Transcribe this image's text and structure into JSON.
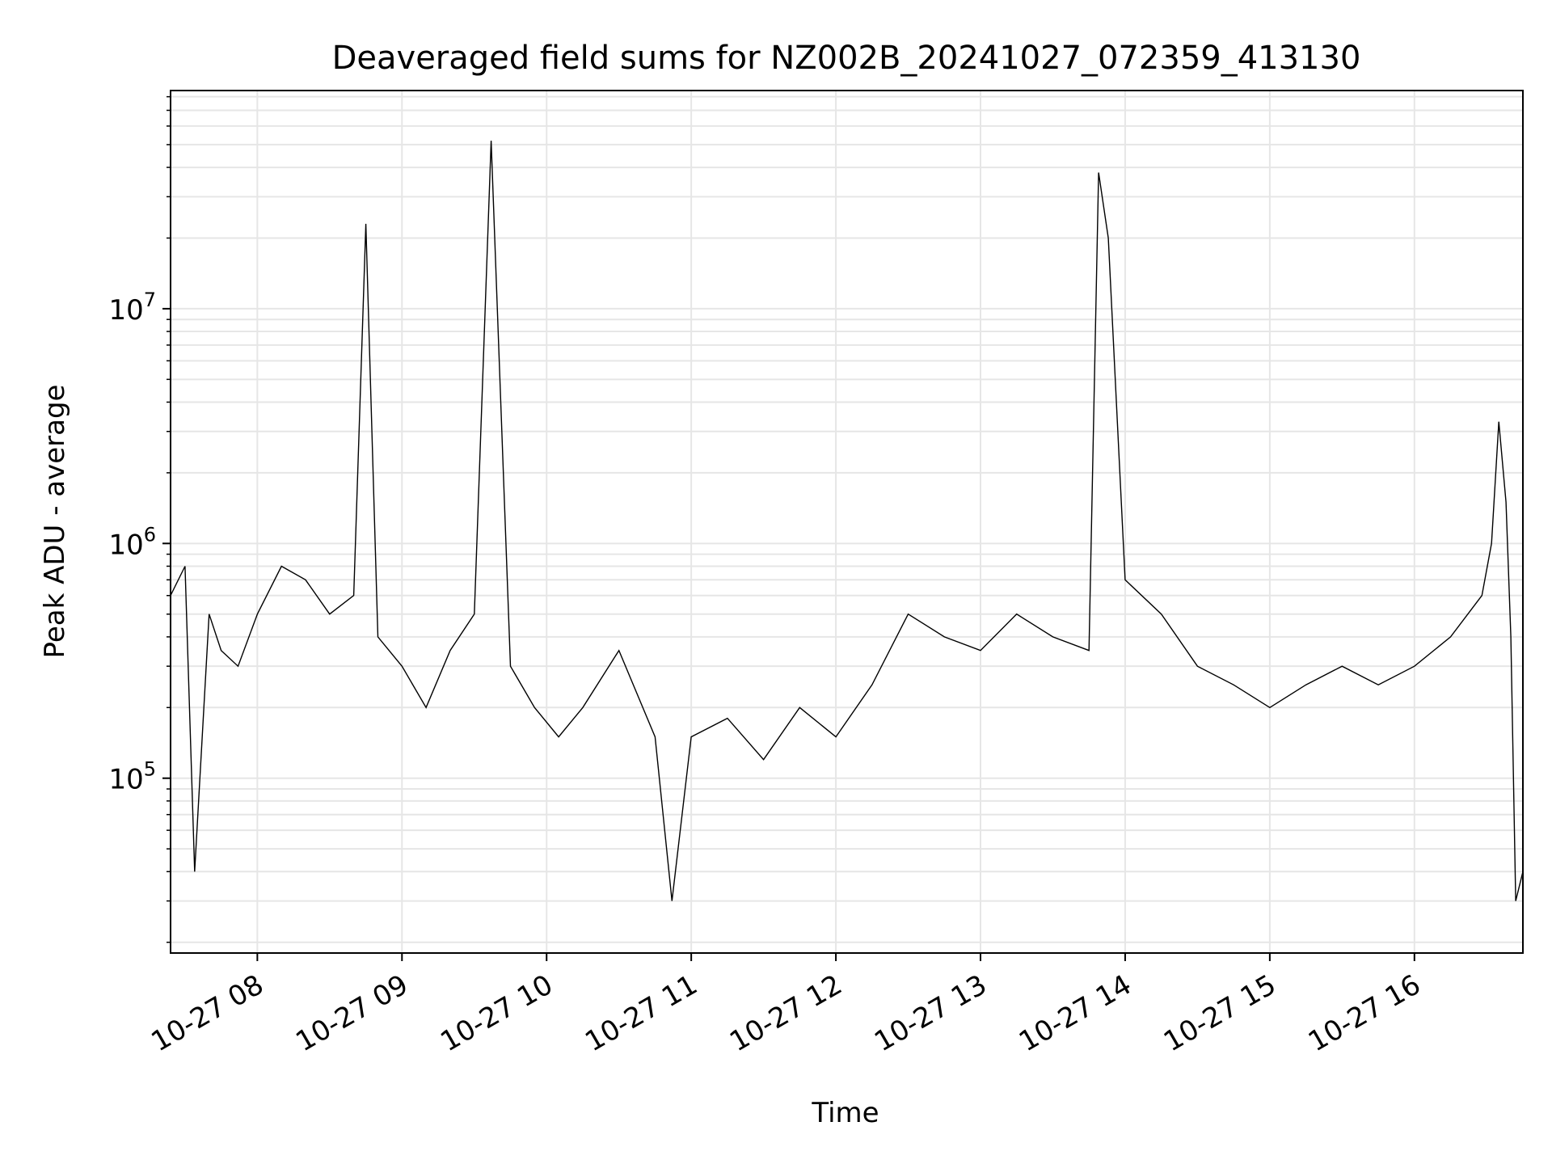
{
  "chart_data": {
    "type": "line",
    "title": "Deaveraged field sums for NZ002B_20241027_072359_413130",
    "xlabel": "Time",
    "ylabel": "Peak ADU - average",
    "y_scale": "log",
    "ylim": [
      18000,
      85000000
    ],
    "x_range": [
      "2024-10-27 07:24",
      "2024-10-27 16:45"
    ],
    "x_ticks": [
      "2024-10-27 08:00",
      "2024-10-27 09:00",
      "2024-10-27 10:00",
      "2024-10-27 11:00",
      "2024-10-27 12:00",
      "2024-10-27 13:00",
      "2024-10-27 14:00",
      "2024-10-27 15:00",
      "2024-10-27 16:00"
    ],
    "x_tick_labels": [
      "10-27 08",
      "10-27 09",
      "10-27 10",
      "10-27 11",
      "10-27 12",
      "10-27 13",
      "10-27 14",
      "10-27 15",
      "10-27 16"
    ],
    "y_ticks": [
      100000,
      1000000,
      10000000
    ],
    "y_tick_labels": [
      "10^5",
      "10^6",
      "10^7"
    ],
    "grid": true,
    "line_color": "#000000",
    "grid_color": "#e6e6e6",
    "series": [
      {
        "x": [
          "2024-10-27 07:24",
          "2024-10-27 07:30",
          "2024-10-27 07:34",
          "2024-10-27 07:40",
          "2024-10-27 07:45",
          "2024-10-27 07:52",
          "2024-10-27 08:00",
          "2024-10-27 08:10",
          "2024-10-27 08:20",
          "2024-10-27 08:30",
          "2024-10-27 08:40",
          "2024-10-27 08:45",
          "2024-10-27 08:50",
          "2024-10-27 09:00",
          "2024-10-27 09:10",
          "2024-10-27 09:20",
          "2024-10-27 09:30",
          "2024-10-27 09:37",
          "2024-10-27 09:45",
          "2024-10-27 09:55",
          "2024-10-27 10:05",
          "2024-10-27 10:15",
          "2024-10-27 10:30",
          "2024-10-27 10:45",
          "2024-10-27 10:52",
          "2024-10-27 11:00",
          "2024-10-27 11:15",
          "2024-10-27 11:30",
          "2024-10-27 11:45",
          "2024-10-27 12:00",
          "2024-10-27 12:15",
          "2024-10-27 12:30",
          "2024-10-27 12:45",
          "2024-10-27 13:00",
          "2024-10-27 13:15",
          "2024-10-27 13:30",
          "2024-10-27 13:45",
          "2024-10-27 13:49",
          "2024-10-27 13:53",
          "2024-10-27 14:00",
          "2024-10-27 14:15",
          "2024-10-27 14:30",
          "2024-10-27 14:45",
          "2024-10-27 15:00",
          "2024-10-27 15:15",
          "2024-10-27 15:30",
          "2024-10-27 15:45",
          "2024-10-27 16:00",
          "2024-10-27 16:15",
          "2024-10-27 16:28",
          "2024-10-27 16:32",
          "2024-10-27 16:35",
          "2024-10-27 16:38",
          "2024-10-27 16:40",
          "2024-10-27 16:42",
          "2024-10-27 16:45"
        ],
        "y": [
          600000,
          800000,
          40000,
          500000,
          350000,
          300000,
          500000,
          800000,
          700000,
          500000,
          600000,
          23000000,
          400000,
          300000,
          200000,
          350000,
          500000,
          52000000,
          300000,
          200000,
          150000,
          200000,
          350000,
          150000,
          30000,
          150000,
          180000,
          120000,
          200000,
          150000,
          250000,
          500000,
          400000,
          350000,
          500000,
          400000,
          350000,
          38000000,
          20000000,
          700000,
          500000,
          300000,
          250000,
          200000,
          250000,
          300000,
          250000,
          300000,
          400000,
          600000,
          1000000,
          3300000,
          1500000,
          400000,
          30000,
          40000
        ]
      }
    ]
  }
}
